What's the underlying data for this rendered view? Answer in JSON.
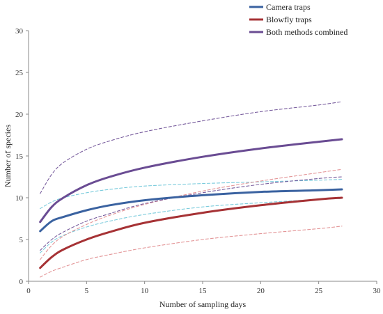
{
  "chart_data": {
    "type": "line",
    "title": "",
    "xlabel": "Number of sampling days",
    "ylabel": "Number of species",
    "xlim": [
      0,
      30
    ],
    "ylim": [
      0,
      30
    ],
    "x_ticks": [
      0,
      5,
      10,
      15,
      20,
      25,
      30
    ],
    "y_ticks": [
      0,
      5,
      10,
      15,
      20,
      25,
      30
    ],
    "grid": false,
    "legend_position": "top-right",
    "x": [
      1,
      2,
      3,
      5,
      7,
      10,
      15,
      20,
      25,
      27
    ],
    "series": [
      {
        "name": "Camera traps",
        "style": "solid",
        "color": "#3A62A0",
        "values": [
          6.0,
          7.2,
          7.7,
          8.5,
          9.1,
          9.7,
          10.3,
          10.7,
          10.9,
          11.0
        ]
      },
      {
        "name": "Blowfly traps",
        "style": "solid",
        "color": "#A63235",
        "values": [
          1.6,
          2.9,
          3.8,
          5.0,
          5.9,
          7.0,
          8.2,
          9.1,
          9.8,
          10.0
        ]
      },
      {
        "name": "Both methods combined",
        "style": "solid",
        "color": "#6A4C93",
        "values": [
          7.1,
          8.9,
          10.0,
          11.5,
          12.5,
          13.6,
          14.9,
          15.9,
          16.7,
          17.0
        ]
      },
      {
        "style": "dashed",
        "color": "#6BC5D8",
        "values": [
          8.7,
          9.5,
          10.0,
          10.6,
          11.0,
          11.4,
          11.7,
          11.9,
          12.1,
          12.2
        ]
      },
      {
        "style": "dashed",
        "color": "#6BC5D8",
        "values": [
          3.4,
          4.7,
          5.5,
          6.5,
          7.2,
          8.0,
          8.9,
          9.4,
          9.8,
          9.9
        ]
      },
      {
        "style": "dashed",
        "color": "#E08A8C",
        "values": [
          2.6,
          4.3,
          5.4,
          6.8,
          7.9,
          9.2,
          10.8,
          12.0,
          13.0,
          13.4
        ]
      },
      {
        "style": "dashed",
        "color": "#E08A8C",
        "values": [
          0.5,
          1.2,
          1.7,
          2.6,
          3.2,
          4.0,
          5.0,
          5.7,
          6.3,
          6.6
        ]
      },
      {
        "style": "dashed",
        "color": "#6A4C93",
        "values": [
          10.5,
          12.8,
          14.2,
          15.8,
          16.8,
          17.9,
          19.2,
          20.3,
          21.1,
          21.5
        ]
      },
      {
        "style": "dashed",
        "color": "#6A4C93",
        "values": [
          3.7,
          5.0,
          5.9,
          7.2,
          8.1,
          9.3,
          10.6,
          11.6,
          12.3,
          12.5
        ]
      }
    ]
  }
}
